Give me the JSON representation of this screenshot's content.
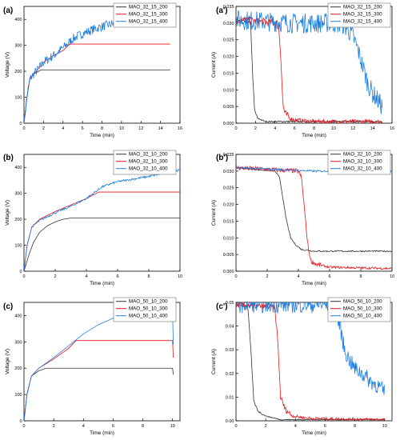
{
  "figure": {
    "colors": {
      "black": "#333333",
      "red": "#e8141a",
      "blue": "#1f7fe0",
      "axis": "#000000"
    }
  },
  "chart_data": [
    {
      "panel_label": "(a)",
      "type": "line",
      "xlabel": "Time (min)",
      "ylabel": "Voltage (V)",
      "xlim": [
        0,
        16
      ],
      "ylim": [
        0,
        450
      ],
      "xticks": [
        "0",
        "2",
        "4",
        "6",
        "8",
        "10",
        "12",
        "14",
        "16"
      ],
      "yticks": [
        "0",
        "100",
        "200",
        "300",
        "400"
      ],
      "legend_position": "top-right",
      "grid": false,
      "series": [
        {
          "name": "MAO_32_15_200",
          "color": "#333333",
          "x": [
            0,
            0.3,
            0.6,
            1.0,
            1.5,
            1.7,
            15
          ],
          "y": [
            0,
            100,
            170,
            190,
            200,
            205,
            205
          ]
        },
        {
          "name": "MAO_32_15_300",
          "color": "#e8141a",
          "x": [
            0,
            0.3,
            0.6,
            1.0,
            1.5,
            2,
            3,
            4,
            4.7,
            15
          ],
          "y": [
            0,
            100,
            170,
            190,
            210,
            235,
            260,
            280,
            305,
            305
          ]
        },
        {
          "name": "MAO_32_15_400",
          "color": "#1f7fe0",
          "x": [
            0,
            0.3,
            0.6,
            1.0,
            1.5,
            2,
            3,
            4,
            5,
            6,
            7,
            8,
            9,
            10,
            11,
            12,
            13,
            14,
            15
          ],
          "y": [
            0,
            100,
            170,
            190,
            210,
            235,
            260,
            290,
            325,
            345,
            360,
            372,
            382,
            390,
            395,
            400,
            403,
            405,
            405
          ],
          "noise": 18
        }
      ]
    },
    {
      "panel_label": "(a')",
      "type": "line",
      "xlabel": "Time (min)",
      "ylabel": "Current (A)",
      "xlim": [
        0,
        16
      ],
      "ylim": [
        0,
        0.035
      ],
      "xticks": [
        "0",
        "2",
        "4",
        "6",
        "8",
        "10",
        "12",
        "14",
        "16"
      ],
      "yticks": [
        "0.000",
        "0.005",
        "0.010",
        "0.015",
        "0.020",
        "0.025",
        "0.030",
        "0.035"
      ],
      "legend_position": "top-right",
      "grid": false,
      "series": [
        {
          "name": "MAO_32_15_200",
          "color": "#333333",
          "x": [
            0,
            1.5,
            1.7,
            1.9,
            2.2,
            2.6,
            3,
            15
          ],
          "y": [
            0.031,
            0.03,
            0.015,
            0.004,
            0.0015,
            0.001,
            0.0005,
            0.0005
          ],
          "noise": 0.0004
        },
        {
          "name": "MAO_32_15_300",
          "color": "#e8141a",
          "x": [
            0,
            4.2,
            4.4,
            4.6,
            4.8,
            5.0,
            5.5,
            6,
            8,
            15
          ],
          "y": [
            0.031,
            0.03,
            0.028,
            0.02,
            0.006,
            0.003,
            0.0015,
            0.001,
            0.0005,
            0.0005
          ],
          "noise": 0.0012
        },
        {
          "name": "MAO_32_15_400",
          "color": "#1f7fe0",
          "x": [
            0,
            6,
            8,
            10,
            11,
            11.5,
            12,
            12.5,
            13,
            13.5,
            14,
            14.5,
            15
          ],
          "y": [
            0.031,
            0.03,
            0.03,
            0.03,
            0.0295,
            0.028,
            0.026,
            0.022,
            0.017,
            0.012,
            0.009,
            0.007,
            0.005
          ],
          "noise": 0.003
        }
      ]
    },
    {
      "panel_label": "(b)",
      "type": "line",
      "xlabel": "Time (min)",
      "ylabel": "Voltage (V)",
      "xlim": [
        0,
        10
      ],
      "ylim": [
        0,
        450
      ],
      "xticks": [
        "0",
        "2",
        "4",
        "6",
        "8",
        "10"
      ],
      "yticks": [
        "0",
        "100",
        "200",
        "300",
        "400"
      ],
      "legend_position": "top-right",
      "grid": false,
      "series": [
        {
          "name": "MAO_32_10_200",
          "color": "#333333",
          "x": [
            0,
            0.3,
            0.6,
            1,
            1.5,
            2,
            2.5,
            3,
            10
          ],
          "y": [
            0,
            60,
            110,
            150,
            175,
            190,
            200,
            205,
            205
          ]
        },
        {
          "name": "MAO_32_10_300",
          "color": "#e8141a",
          "x": [
            0,
            0.2,
            0.5,
            1,
            2,
            3,
            4,
            4.8,
            10
          ],
          "y": [
            0,
            100,
            170,
            200,
            230,
            255,
            280,
            305,
            305
          ]
        },
        {
          "name": "MAO_32_10_400",
          "color": "#1f7fe0",
          "x": [
            0,
            0.2,
            0.5,
            1,
            2,
            3,
            4,
            5,
            6,
            7,
            8,
            9,
            10
          ],
          "y": [
            0,
            100,
            170,
            195,
            225,
            250,
            280,
            325,
            345,
            355,
            365,
            378,
            390
          ],
          "noise": 4
        }
      ]
    },
    {
      "panel_label": "(b')",
      "type": "line",
      "xlabel": "Time (min)",
      "ylabel": "Current (A)",
      "xlim": [
        0,
        10
      ],
      "ylim": [
        0,
        0.035
      ],
      "xticks": [
        "0",
        "2",
        "4",
        "6",
        "8",
        "10"
      ],
      "yticks": [
        "0.000",
        "0.005",
        "0.010",
        "0.015",
        "0.020",
        "0.025",
        "0.030",
        "0.035"
      ],
      "legend_position": "top-right",
      "grid": false,
      "series": [
        {
          "name": "MAO_32_10_200",
          "color": "#333333",
          "x": [
            0,
            2.5,
            2.8,
            3.0,
            3.2,
            3.5,
            3.8,
            4.2,
            5,
            6,
            10
          ],
          "y": [
            0.031,
            0.03,
            0.028,
            0.022,
            0.016,
            0.01,
            0.008,
            0.0065,
            0.006,
            0.006,
            0.006
          ],
          "noise": 0.0002
        },
        {
          "name": "MAO_32_10_300",
          "color": "#e8141a",
          "x": [
            0,
            4.0,
            4.2,
            4.4,
            4.6,
            4.8,
            5.2,
            6,
            10
          ],
          "y": [
            0.031,
            0.03,
            0.028,
            0.018,
            0.008,
            0.003,
            0.002,
            0.0012,
            0.0008
          ],
          "noise": 0.0007
        },
        {
          "name": "MAO_32_10_400",
          "color": "#1f7fe0",
          "x": [
            0,
            5,
            8,
            10
          ],
          "y": [
            0.031,
            0.03,
            0.03,
            0.03
          ],
          "noise": 0.0003
        }
      ]
    },
    {
      "panel_label": "(c)",
      "type": "line",
      "xlabel": "Time (min)",
      "ylabel": "Voltage (V)",
      "xlim": [
        0,
        10.5
      ],
      "ylim": [
        0,
        450
      ],
      "xticks": [
        "0",
        "2",
        "4",
        "6",
        "8",
        "10"
      ],
      "yticks": [
        "0",
        "100",
        "200",
        "300",
        "400"
      ],
      "legend_position": "top-right",
      "grid": false,
      "series": [
        {
          "name": "MAO_50_10_200",
          "color": "#333333",
          "x": [
            0,
            0.2,
            0.5,
            1,
            1.5,
            10,
            10.05
          ],
          "y": [
            0,
            100,
            170,
            190,
            200,
            200,
            175
          ]
        },
        {
          "name": "MAO_50_10_300",
          "color": "#e8141a",
          "x": [
            0,
            0.2,
            0.5,
            1,
            2,
            3,
            3.5,
            10,
            10.05
          ],
          "y": [
            0,
            100,
            170,
            200,
            235,
            275,
            305,
            305,
            240
          ]
        },
        {
          "name": "MAO_50_10_400",
          "color": "#1f7fe0",
          "x": [
            0,
            0.2,
            0.5,
            1,
            2,
            3,
            4,
            5,
            6,
            7,
            10,
            10.05
          ],
          "y": [
            0,
            100,
            170,
            200,
            240,
            285,
            330,
            365,
            390,
            408,
            408,
            290
          ]
        }
      ]
    },
    {
      "panel_label": "(c')",
      "type": "line",
      "xlabel": "Time (min)",
      "ylabel": "Current (A)",
      "xlim": [
        0,
        10.5
      ],
      "ylim": [
        0,
        0.05
      ],
      "xticks": [
        "0",
        "2",
        "4",
        "6",
        "8",
        "10"
      ],
      "yticks": [
        "0.00",
        "0.01",
        "0.02",
        "0.03",
        "0.04",
        "0.05"
      ],
      "legend_position": "top-right",
      "grid": false,
      "series": [
        {
          "name": "MAO_50_10_200",
          "color": "#333333",
          "x": [
            0,
            0.8,
            1.0,
            1.2,
            1.5,
            2,
            3,
            10
          ],
          "y": [
            0.049,
            0.048,
            0.03,
            0.008,
            0.004,
            0.002,
            0.0005,
            0.0005
          ],
          "noise": 0.0004
        },
        {
          "name": "MAO_50_10_300",
          "color": "#e8141a",
          "x": [
            0,
            2.6,
            2.8,
            3.0,
            3.3,
            3.8,
            5,
            10
          ],
          "y": [
            0.049,
            0.048,
            0.035,
            0.01,
            0.005,
            0.002,
            0.001,
            0.0005
          ],
          "noise": 0.0012
        },
        {
          "name": "MAO_50_10_400",
          "color": "#1f7fe0",
          "x": [
            0,
            6,
            6.5,
            7,
            7.3,
            7.6,
            8,
            8.5,
            9,
            9.5,
            10
          ],
          "y": [
            0.049,
            0.049,
            0.048,
            0.04,
            0.03,
            0.026,
            0.022,
            0.02,
            0.017,
            0.015,
            0.012
          ],
          "noise": 0.0035
        }
      ]
    }
  ]
}
